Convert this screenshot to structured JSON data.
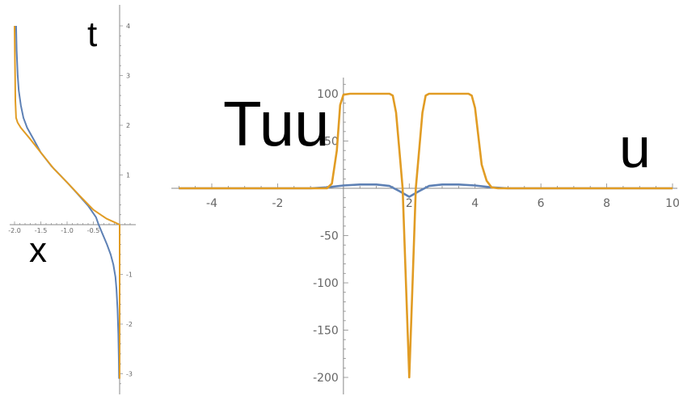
{
  "colors": {
    "series1": "#5e81b5",
    "series2": "#e19c24",
    "axis": "#888888"
  },
  "chart_data": [
    {
      "type": "line",
      "orientation": "x horizontal, t vertical",
      "xlabel": "x",
      "ylabel": "t",
      "xlim": [
        -2.05,
        0.25
      ],
      "ylim": [
        -3.2,
        4.2
      ],
      "x_ticks": [
        "-2.0",
        "-1.5",
        "-1.0",
        "-0.5"
      ],
      "x_tick_values": [
        -2.0,
        -1.5,
        -1.0,
        -0.5
      ],
      "y_ticks": [
        "-3",
        "-2",
        "-1",
        "1",
        "2",
        "3",
        "4"
      ],
      "y_tick_values": [
        -3,
        -2,
        -1,
        1,
        2,
        3,
        4
      ],
      "series": [
        {
          "color": "#5e81b5",
          "points": [
            [
              -1.97,
              4.0
            ],
            [
              -1.96,
              3.5
            ],
            [
              -1.94,
              3.0
            ],
            [
              -1.92,
              2.7
            ],
            [
              -1.88,
              2.4
            ],
            [
              -1.83,
              2.15
            ],
            [
              -1.76,
              1.95
            ],
            [
              -1.63,
              1.7
            ],
            [
              -1.5,
              1.45
            ],
            [
              -1.3,
              1.18
            ],
            [
              -1.0,
              0.85
            ],
            [
              -0.8,
              0.62
            ],
            [
              -0.6,
              0.38
            ],
            [
              -0.45,
              0.15
            ],
            [
              -0.4,
              0.0
            ],
            [
              -0.32,
              -0.2
            ],
            [
              -0.24,
              -0.4
            ],
            [
              -0.17,
              -0.6
            ],
            [
              -0.12,
              -0.8
            ],
            [
              -0.08,
              -1.05
            ],
            [
              -0.06,
              -1.3
            ],
            [
              -0.04,
              -1.7
            ],
            [
              -0.025,
              -2.2
            ],
            [
              -0.015,
              -2.7
            ],
            [
              -0.01,
              -3.1
            ]
          ]
        },
        {
          "color": "#e19c24",
          "points": [
            [
              -2.0,
              4.0
            ],
            [
              -1.99,
              3.0
            ],
            [
              -1.985,
              2.5
            ],
            [
              -1.97,
              2.15
            ],
            [
              -1.94,
              2.05
            ],
            [
              -1.88,
              1.95
            ],
            [
              -1.7,
              1.72
            ],
            [
              -1.5,
              1.45
            ],
            [
              -1.25,
              1.12
            ],
            [
              -1.0,
              0.85
            ],
            [
              -0.75,
              0.57
            ],
            [
              -0.5,
              0.3
            ],
            [
              -0.25,
              0.12
            ],
            [
              -0.1,
              0.05
            ],
            [
              0.0,
              0.0
            ],
            [
              0.0,
              -1.0
            ],
            [
              0.0,
              -2.0
            ],
            [
              0.0,
              -3.1
            ]
          ]
        }
      ]
    },
    {
      "type": "line",
      "xlabel": "u",
      "ylabel": "Tuu",
      "xlim": [
        -5.2,
        10.0
      ],
      "ylim": [
        -205,
        115
      ],
      "x_ticks": [
        "-4",
        "-2",
        "2",
        "4",
        "6",
        "8",
        "10"
      ],
      "x_tick_values": [
        -4,
        -2,
        2,
        4,
        6,
        8,
        10
      ],
      "y_ticks": [
        "-200",
        "-150",
        "-100",
        "-50",
        "50",
        "100"
      ],
      "y_tick_values": [
        -200,
        -150,
        -100,
        -50,
        50,
        100
      ],
      "series": [
        {
          "color": "#5e81b5",
          "points": [
            [
              -5.0,
              0
            ],
            [
              -1.0,
              0
            ],
            [
              -0.5,
              1
            ],
            [
              0.0,
              3
            ],
            [
              0.5,
              4
            ],
            [
              1.0,
              4
            ],
            [
              1.4,
              2.5
            ],
            [
              1.7,
              -3
            ],
            [
              2.0,
              -9
            ],
            [
              2.3,
              -3
            ],
            [
              2.6,
              2.5
            ],
            [
              3.0,
              4
            ],
            [
              3.5,
              4
            ],
            [
              4.0,
              3
            ],
            [
              4.5,
              1
            ],
            [
              5.0,
              0
            ],
            [
              10.0,
              0
            ]
          ]
        },
        {
          "color": "#e19c24",
          "points": [
            [
              -5.0,
              0
            ],
            [
              -0.5,
              0
            ],
            [
              -0.35,
              5
            ],
            [
              -0.2,
              40
            ],
            [
              -0.1,
              88
            ],
            [
              0.0,
              99
            ],
            [
              0.2,
              100
            ],
            [
              1.0,
              100
            ],
            [
              1.4,
              100
            ],
            [
              1.5,
              98
            ],
            [
              1.6,
              80
            ],
            [
              1.7,
              40
            ],
            [
              1.8,
              0
            ],
            [
              1.9,
              -100
            ],
            [
              2.0,
              -200
            ],
            [
              2.1,
              -100
            ],
            [
              2.2,
              0
            ],
            [
              2.3,
              40
            ],
            [
              2.4,
              80
            ],
            [
              2.5,
              98
            ],
            [
              2.6,
              100
            ],
            [
              3.5,
              100
            ],
            [
              3.8,
              100
            ],
            [
              3.9,
              98
            ],
            [
              4.0,
              85
            ],
            [
              4.1,
              55
            ],
            [
              4.2,
              25
            ],
            [
              4.35,
              8
            ],
            [
              4.5,
              1
            ],
            [
              4.7,
              0
            ],
            [
              10.0,
              0
            ]
          ]
        }
      ]
    }
  ]
}
